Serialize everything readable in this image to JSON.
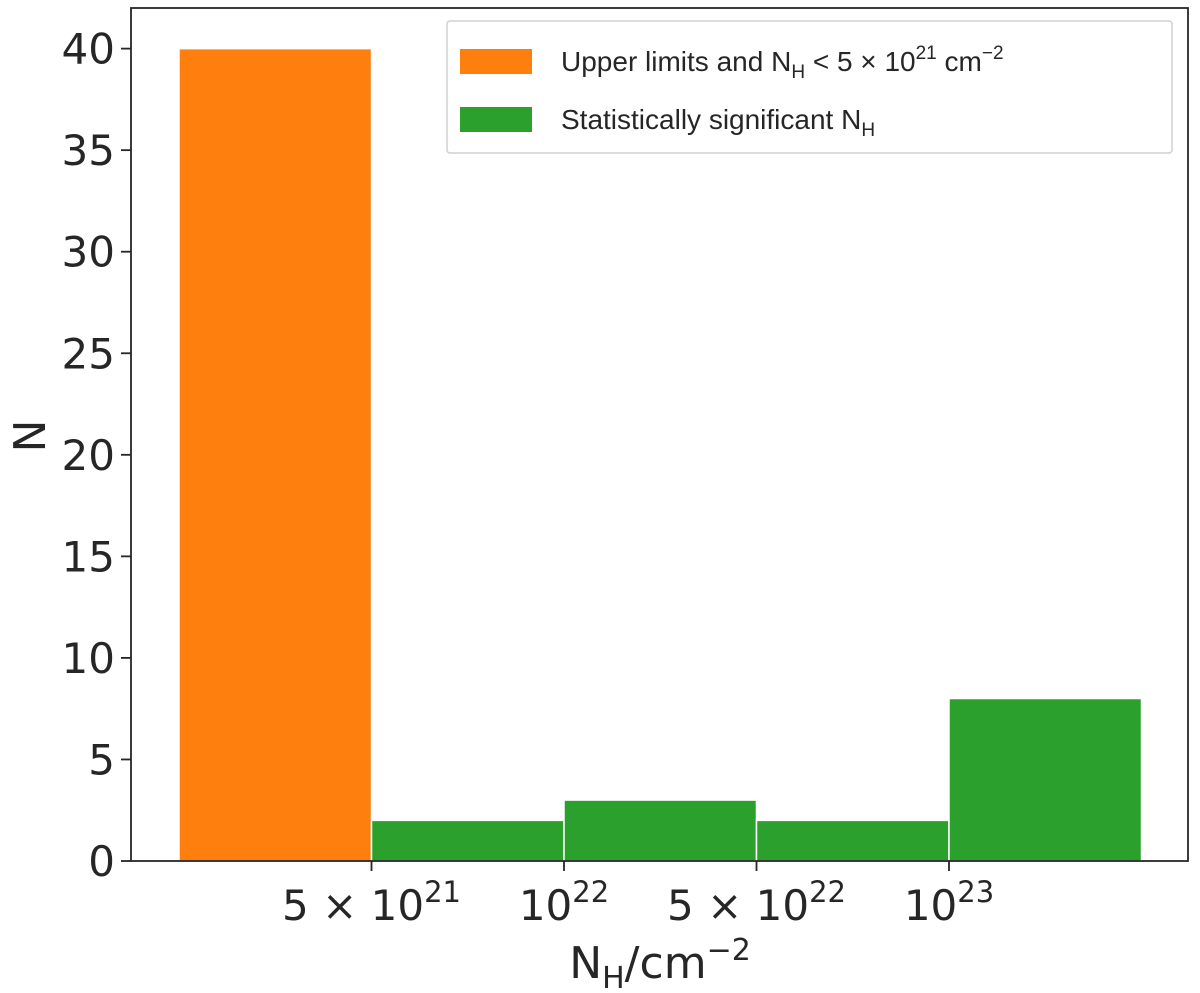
{
  "chart_data": {
    "type": "bar",
    "xlabel": {
      "main": "N",
      "sub": "H",
      "unit": "/cm",
      "sup": "−2"
    },
    "ylabel": "N",
    "ylim": [
      0,
      42
    ],
    "yticks": [
      "0",
      "5",
      "10",
      "15",
      "20",
      "25",
      "30",
      "35",
      "40"
    ],
    "ytick_values": [
      0,
      5,
      10,
      15,
      20,
      25,
      30,
      35,
      40
    ],
    "xticks": [
      {
        "base": "5 × 10",
        "exp": "21"
      },
      {
        "base": "10",
        "exp": "22"
      },
      {
        "base": "5 × 10",
        "exp": "22"
      },
      {
        "base": "10",
        "exp": "23"
      }
    ],
    "bins": [
      {
        "range": "< 5 × 10^21",
        "value": 40,
        "series": 0
      },
      {
        "range": "5 × 10^21 – 10^22",
        "value": 2,
        "series": 1
      },
      {
        "range": "10^22 – 5 × 10^22",
        "value": 3,
        "series": 1
      },
      {
        "range": "5 × 10^22 – 10^23",
        "value": 2,
        "series": 1
      },
      {
        "range": "> 10^23",
        "value": 8,
        "series": 1
      }
    ],
    "series": [
      {
        "name": {
          "pre": "Upper limits and N",
          "sub": "H",
          "mid": " < 5 × 10",
          "sup": "21",
          "post": " cm",
          "sup2": "−2"
        },
        "color": "#ff7f0e"
      },
      {
        "name": {
          "pre": "Statistically significant N",
          "sub": "H"
        },
        "color": "#2ca02c"
      }
    ],
    "legend_position": "top-right",
    "grid": false
  }
}
